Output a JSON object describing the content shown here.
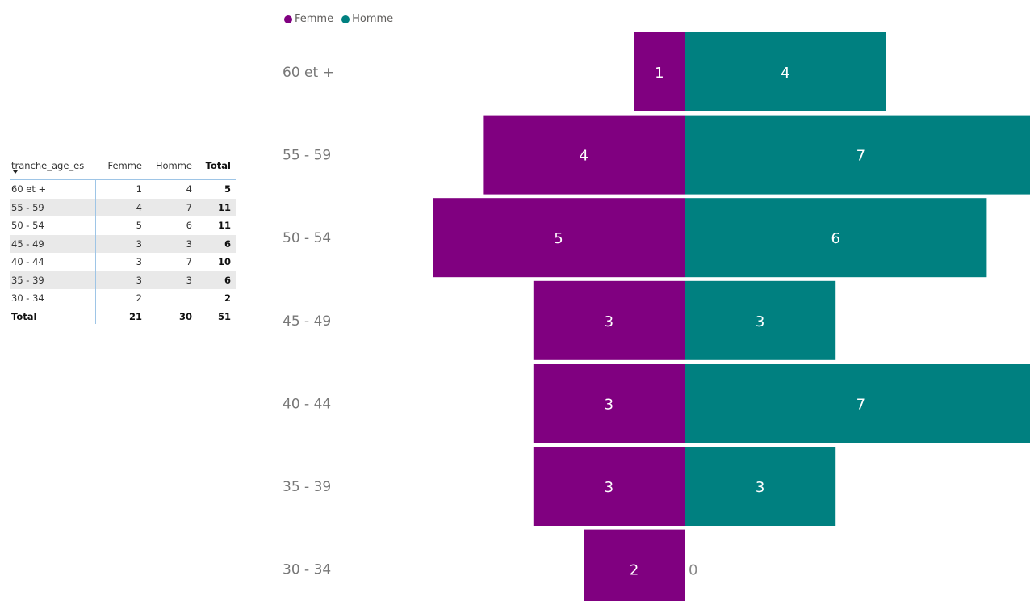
{
  "table": {
    "headers": [
      "tranche_age_es",
      "Femme",
      "Homme",
      "Total"
    ],
    "rows": [
      [
        "60 et +",
        "1",
        "4",
        "5"
      ],
      [
        "55 - 59",
        "4",
        "7",
        "11"
      ],
      [
        "50 - 54",
        "5",
        "6",
        "11"
      ],
      [
        "45 - 49",
        "3",
        "3",
        "6"
      ],
      [
        "40 - 44",
        "3",
        "7",
        "10"
      ],
      [
        "35 - 39",
        "3",
        "3",
        "6"
      ],
      [
        "30 - 34",
        "2",
        "",
        "2"
      ]
    ],
    "total": [
      "Total",
      "21",
      "30",
      "51"
    ]
  },
  "legend": {
    "femme_label": "Femme",
    "homme_label": "Homme"
  },
  "colors": {
    "femme": "#800080",
    "homme": "#008080"
  },
  "chart_data": {
    "type": "bar",
    "orientation": "horizontal-butterfly",
    "categories": [
      "60 et +",
      "55 - 59",
      "50 - 54",
      "45 - 49",
      "40 - 44",
      "35 - 39",
      "30 - 34"
    ],
    "series": [
      {
        "name": "Femme",
        "values": [
          1,
          4,
          5,
          3,
          3,
          3,
          2
        ]
      },
      {
        "name": "Homme",
        "values": [
          4,
          7,
          6,
          3,
          7,
          3,
          0
        ]
      }
    ],
    "data_labels": true,
    "legend": "top-left",
    "grid": false
  }
}
